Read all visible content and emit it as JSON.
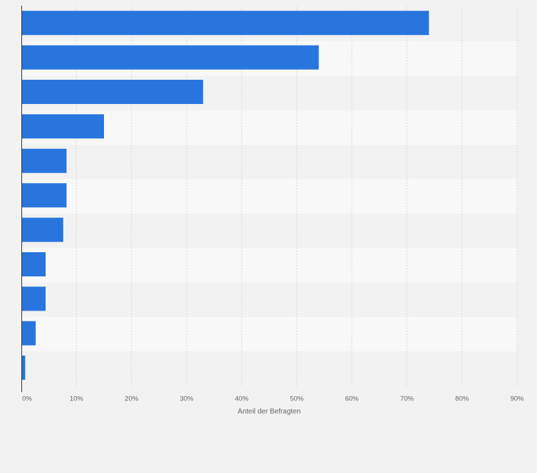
{
  "chart_data": {
    "type": "bar",
    "orientation": "horizontal",
    "title": "",
    "categories": [
      "",
      "",
      "",
      "",
      "",
      "",
      "",
      "",
      "",
      "",
      ""
    ],
    "values": [
      74,
      54,
      33,
      15,
      8.2,
      8.2,
      7.6,
      4.4,
      4.4,
      2.6,
      0.7
    ],
    "xlabel": "Anteil der Befragten",
    "ylabel": "",
    "xlim": [
      0,
      90
    ],
    "ticks": [
      0,
      10,
      20,
      30,
      40,
      50,
      60,
      70,
      80,
      90
    ],
    "tick_labels": [
      "0%",
      "10%",
      "20%",
      "30%",
      "40%",
      "50%",
      "60%",
      "70%",
      "80%",
      "90%"
    ],
    "grid": true,
    "colors": {
      "bar": "#2876dd",
      "page_background": "#f2f2f2",
      "band_light": "#f8f8f8",
      "band_dark": "#f2f2f2",
      "gridline": "#d9d9d9",
      "axis": "#333333",
      "tick_text": "#666666"
    }
  }
}
